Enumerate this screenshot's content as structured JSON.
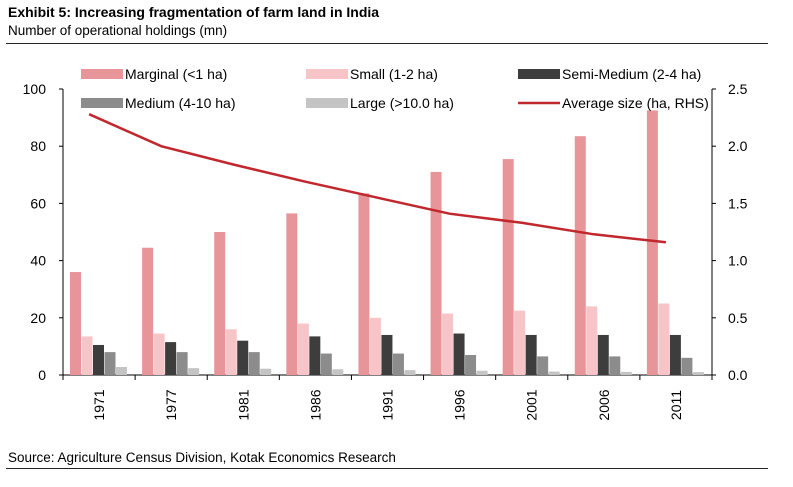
{
  "header": {
    "title": "Exhibit 5: Increasing fragmentation of farm land in India",
    "subtitle": "Number of operational holdings (mn)"
  },
  "footer": {
    "source": "Source: Agriculture Census Division, Kotak Economics Research"
  },
  "chart_data": {
    "type": "bar",
    "title": "",
    "xlabel": "",
    "ylabel": "",
    "categories": [
      "1971",
      "1977",
      "1981",
      "1986",
      "1991",
      "1996",
      "2001",
      "2006",
      "2011"
    ],
    "ylim": [
      0,
      100
    ],
    "yticks": [
      "0",
      "20",
      "40",
      "60",
      "80",
      "100"
    ],
    "y2lim": [
      0,
      2.5
    ],
    "y2ticks": [
      "0.0",
      "0.5",
      "1.0",
      "1.5",
      "2.0",
      "2.5"
    ],
    "grid": false,
    "legend_position": "top",
    "series": [
      {
        "name": "Marginal (<1 ha)",
        "type": "bar",
        "axis": "left",
        "color": "#e8959a",
        "values": [
          36,
          44.5,
          50,
          56.5,
          63.5,
          71,
          75.5,
          83.5,
          92.5
        ]
      },
      {
        "name": "Small (1-2 ha)",
        "type": "bar",
        "axis": "left",
        "color": "#f7c5c8",
        "values": [
          13.5,
          14.5,
          16,
          18,
          20,
          21.5,
          22.5,
          24,
          25
        ]
      },
      {
        "name": "Semi-Medium (2-4 ha)",
        "type": "bar",
        "axis": "left",
        "color": "#3d3d3d",
        "values": [
          10.5,
          11.5,
          12,
          13.5,
          14,
          14.5,
          14,
          14,
          14
        ]
      },
      {
        "name": "Medium (4-10 ha)",
        "type": "bar",
        "axis": "left",
        "color": "#8c8c8c",
        "values": [
          8,
          8,
          8,
          7.5,
          7.5,
          7,
          6.5,
          6.5,
          6
        ]
      },
      {
        "name": "Large (>10.0 ha)",
        "type": "bar",
        "axis": "left",
        "color": "#c4c4c4",
        "values": [
          2.8,
          2.4,
          2.2,
          2,
          1.7,
          1.5,
          1.2,
          1.1,
          1
        ]
      },
      {
        "name": "Average size (ha, RHS)",
        "type": "line",
        "axis": "right",
        "color": "#c0282d",
        "values": [
          2.28,
          2.0,
          1.84,
          1.69,
          1.55,
          1.41,
          1.33,
          1.23,
          1.16
        ]
      }
    ]
  }
}
